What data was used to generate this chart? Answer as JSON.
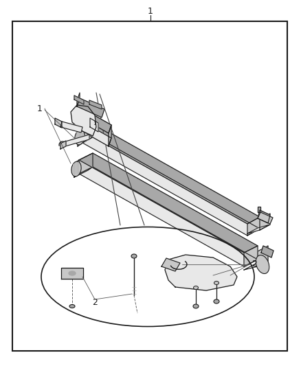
{
  "bg_color": "#ffffff",
  "border_color": "#000000",
  "line_color": "#1a1a1a",
  "gray_light": "#e8e8e8",
  "gray_mid": "#c8c8c8",
  "gray_dark": "#a8a8a8",
  "label_color": "#000000",
  "figsize": [
    4.38,
    5.33
  ],
  "dpi": 100,
  "title_text": "1",
  "label1_text": "1",
  "label2_text": "2"
}
